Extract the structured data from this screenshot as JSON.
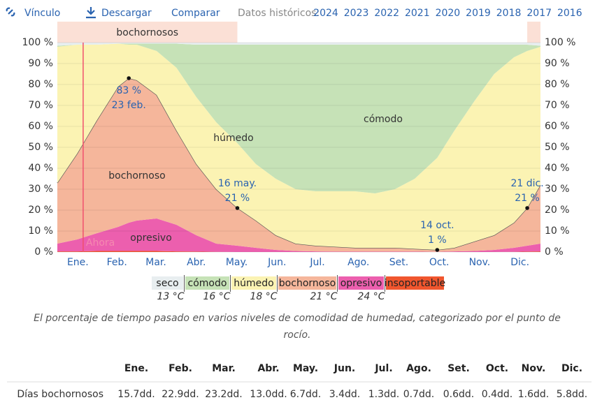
{
  "toolbar": {
    "link": "Vínculo",
    "download": "Descargar",
    "compare": "Comparar",
    "history": "Datos históricos:",
    "years": [
      "2024",
      "2023",
      "2022",
      "2021",
      "2020",
      "2019",
      "2018",
      "2017",
      "2016"
    ]
  },
  "chart_data": {
    "type": "stacked_area",
    "x": [
      0,
      15,
      30,
      46,
      54,
      60,
      75,
      90,
      105,
      120,
      136,
      150,
      165,
      180,
      195,
      210,
      225,
      240,
      255,
      270,
      287,
      300,
      315,
      330,
      345,
      355,
      365
    ],
    "xlim": [
      0,
      365
    ],
    "xticks": [
      {
        "value": 15.5,
        "label": "Ene."
      },
      {
        "value": 45,
        "label": "Feb."
      },
      {
        "value": 74.5,
        "label": "Mar."
      },
      {
        "value": 105,
        "label": "Abr."
      },
      {
        "value": 135.5,
        "label": "May."
      },
      {
        "value": 166,
        "label": "Jun."
      },
      {
        "value": 196.5,
        "label": "Jul."
      },
      {
        "value": 227.5,
        "label": "Ago."
      },
      {
        "value": 258,
        "label": "Set."
      },
      {
        "value": 288.5,
        "label": "Oct."
      },
      {
        "value": 319,
        "label": "Nov."
      },
      {
        "value": 349.5,
        "label": "Dic."
      }
    ],
    "ylim": [
      0,
      100
    ],
    "yticks": [
      {
        "value": 0,
        "label": "0 %"
      },
      {
        "value": 10,
        "label": "10 %"
      },
      {
        "value": 20,
        "label": "20 %"
      },
      {
        "value": 30,
        "label": "30 %"
      },
      {
        "value": 40,
        "label": "40 %"
      },
      {
        "value": 50,
        "label": "50 %"
      },
      {
        "value": 60,
        "label": "60 %"
      },
      {
        "value": 70,
        "label": "70 %"
      },
      {
        "value": 80,
        "label": "80 %"
      },
      {
        "value": 90,
        "label": "90 %"
      },
      {
        "value": 100,
        "label": "100 %"
      }
    ],
    "grid": true,
    "series": [
      {
        "name": "insoportable",
        "color": "#f0562e",
        "values": [
          0.3,
          0.3,
          0.5,
          0.5,
          0.5,
          0.5,
          0.5,
          0.3,
          0.2,
          0.1,
          0,
          0,
          0,
          0,
          0,
          0,
          0,
          0,
          0,
          0,
          0,
          0,
          0,
          0,
          0.1,
          0.2,
          0.3
        ]
      },
      {
        "name": "opresivo",
        "color": "#ec5fae",
        "values": [
          3.7,
          5.7,
          8.5,
          11.5,
          13.5,
          14.5,
          15.5,
          12.7,
          7.8,
          3.9,
          3,
          2,
          1,
          0.5,
          0.3,
          0.2,
          0.2,
          0.2,
          0.2,
          0.2,
          0.1,
          0.3,
          0.5,
          1,
          1.9,
          2.8,
          3.7
        ]
      },
      {
        "name": "bochornoso",
        "color": "#f5b69b",
        "values": [
          29,
          41,
          54,
          67,
          69,
          67,
          59,
          45,
          34,
          26,
          18,
          13,
          7,
          3.5,
          2.7,
          2.3,
          1.8,
          1.8,
          1.8,
          1.3,
          0.9,
          1.7,
          4.5,
          7,
          12,
          18,
          28
        ]
      },
      {
        "name": "húmedo",
        "color": "#fbf3b3",
        "values": [
          65,
          52,
          36,
          20.5,
          16,
          17,
          21,
          30,
          32,
          32,
          31,
          27,
          27,
          26,
          26,
          26.5,
          27,
          26,
          28,
          33.5,
          44,
          56,
          67,
          77,
          79,
          75,
          66
        ]
      },
      {
        "name": "cómodo",
        "color": "#c6e2b7",
        "values": [
          0.5,
          0,
          0,
          0,
          0.5,
          0.5,
          3.5,
          11.5,
          25,
          37,
          47,
          57,
          64,
          69,
          70,
          70,
          70,
          71,
          69,
          64,
          54,
          41,
          27,
          14,
          6,
          3,
          0.5
        ]
      },
      {
        "name": "seco",
        "color": "#e8eef0",
        "values": [
          1.5,
          1,
          1,
          0.5,
          0.5,
          0.5,
          0.5,
          0.5,
          1,
          1,
          1,
          1,
          1,
          1,
          1,
          1,
          1,
          1,
          1,
          1,
          1,
          1,
          1,
          1,
          1,
          1,
          1.5
        ]
      }
    ],
    "area_labels": [
      "opresivo",
      "bochornoso",
      "húmedo",
      "cómodo"
    ],
    "annotations": [
      {
        "x": 54,
        "value": 83,
        "label": "83 %",
        "date": "23 feb."
      },
      {
        "x": 136,
        "value": 21,
        "label": "21 %",
        "date": "16 may."
      },
      {
        "x": 287,
        "value": 1,
        "label": "1 %",
        "date": "14 oct."
      },
      {
        "x": 355,
        "value": 21,
        "label": "21 %",
        "date": "21 dic."
      }
    ],
    "now": {
      "x": 19.5,
      "label": "Ahora"
    },
    "period_label": "bochornosos",
    "periods": [
      [
        0,
        136
      ],
      [
        355,
        365
      ]
    ],
    "legend": [
      "seco",
      "cómodo",
      "húmedo",
      "bochornoso",
      "opresivo",
      "insoportable"
    ],
    "thresholds": [
      "13 °C",
      "16 °C",
      "18 °C",
      "21 °C",
      "24 °C"
    ]
  },
  "caption": "El porcentaje de tiempo pasado en varios niveles de comodidad de humedad, categorizado por el punto de rocío.",
  "table": {
    "header": [
      "Ene.",
      "Feb.",
      "Mar.",
      "Abr.",
      "May.",
      "Jun.",
      "Jul.",
      "Ago.",
      "Set.",
      "Oct.",
      "Nov.",
      "Dic."
    ],
    "row_label": "Días bochornosos",
    "row": [
      "15.7dd.",
      "22.9dd.",
      "23.2dd.",
      "13.0dd.",
      "6.7dd.",
      "3.4dd.",
      "1.3dd.",
      "0.7dd.",
      "0.6dd.",
      "0.4dd.",
      "1.6dd.",
      "5.8dd."
    ]
  }
}
